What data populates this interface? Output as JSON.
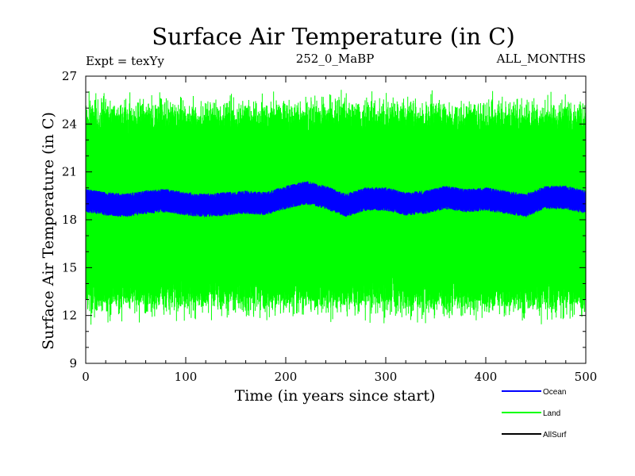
{
  "chart_data": {
    "type": "line",
    "title": "Surface Air Temperature (in C)",
    "subtitle_left": "Expt = texYy",
    "subtitle_center": "252_0_MaBP",
    "subtitle_right": "ALL_MONTHS",
    "xlabel": "Time (in years since start)",
    "ylabel": "Surface Air Temperature (in C)",
    "xlim": [
      0,
      500
    ],
    "ylim": [
      9,
      27
    ],
    "x_ticks": [
      0,
      100,
      200,
      300,
      400,
      500
    ],
    "y_ticks": [
      9,
      12,
      15,
      18,
      21,
      24,
      27
    ],
    "legend_placement": "bottom-right, below plot",
    "series": [
      {
        "name": "Ocean",
        "color": "#0000ff",
        "mean_profile": {
          "x": [
            0,
            20,
            40,
            60,
            80,
            100,
            120,
            140,
            160,
            180,
            200,
            220,
            240,
            260,
            280,
            300,
            320,
            340,
            360,
            380,
            400,
            420,
            440,
            460,
            480,
            500
          ],
          "y": [
            19.2,
            19.0,
            18.9,
            19.1,
            19.2,
            19.0,
            18.9,
            19.0,
            19.1,
            19.0,
            19.4,
            19.7,
            19.4,
            18.9,
            19.3,
            19.3,
            19.0,
            19.1,
            19.4,
            19.2,
            19.3,
            19.1,
            18.9,
            19.4,
            19.4,
            19.1
          ]
        },
        "typical_range": [
          18.3,
          20.0
        ]
      },
      {
        "name": "Land",
        "color": "#00ff00",
        "mean": 18.8,
        "typical_range": [
          12.3,
          25.3
        ],
        "extremes": [
          10.5,
          26.8
        ]
      },
      {
        "name": "AllSurf",
        "color": "#000000"
      }
    ]
  }
}
